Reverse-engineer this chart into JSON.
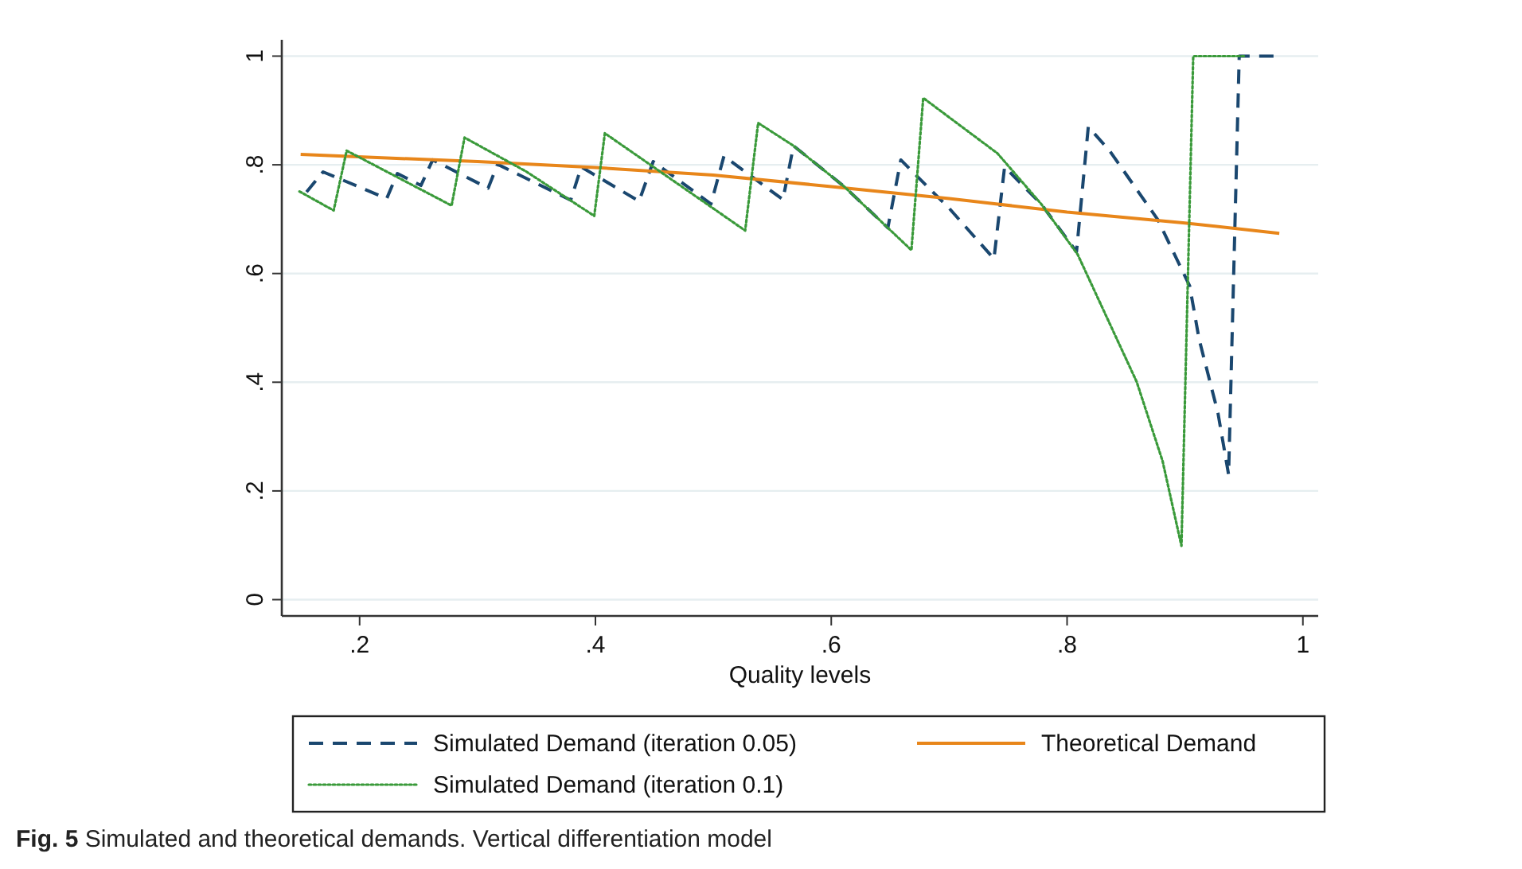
{
  "chart_data": {
    "type": "line",
    "title": "Fig. 5 Simulated and theoretical demands. Vertical differentiation model",
    "xlabel": "Quality levels",
    "xlim": [
      0.134,
      1.013
    ],
    "ylim": [
      -0.03,
      1.03
    ],
    "xticks": [
      {
        "value": 0.2,
        "label": ".2"
      },
      {
        "value": 0.4,
        "label": ".4"
      },
      {
        "value": 0.6,
        "label": ".6"
      },
      {
        "value": 0.8,
        "label": ".8"
      },
      1
    ],
    "yticks": [
      0,
      {
        "value": 0.2,
        "label": ".2"
      },
      {
        "value": 0.4,
        "label": ".4"
      },
      {
        "value": 0.6,
        "label": ".6"
      },
      {
        "value": 0.8,
        "label": ".8"
      },
      1
    ],
    "grid": "y",
    "legend": "bottom",
    "marker": "none",
    "series": [
      {
        "name": "Simulated Demand (iteration 0.05)",
        "color": "#1a476f",
        "line_style": "dashed",
        "x": [
          0.155,
          0.169,
          0.223,
          0.232,
          0.252,
          0.262,
          0.309,
          0.317,
          0.379,
          0.388,
          0.437,
          0.449,
          0.498,
          0.509,
          0.559,
          0.568,
          0.611,
          0.648,
          0.659,
          0.7,
          0.738,
          0.747,
          0.778,
          0.808,
          0.818,
          0.836,
          0.877,
          0.904,
          0.912,
          0.928,
          0.937,
          0.946,
          0.978
        ],
        "values": [
          0.75,
          0.787,
          0.738,
          0.784,
          0.762,
          0.809,
          0.757,
          0.801,
          0.735,
          0.796,
          0.733,
          0.806,
          0.728,
          0.816,
          0.736,
          0.835,
          0.76,
          0.684,
          0.809,
          0.72,
          0.627,
          0.796,
          0.728,
          0.64,
          0.87,
          0.826,
          0.699,
          0.577,
          0.479,
          0.343,
          0.23,
          1.0,
          1.0
        ]
      },
      {
        "name": "Theoretical Demand",
        "color": "#e8861a",
        "line_style": "solid",
        "x": [
          0.15,
          0.3,
          0.4,
          0.5,
          0.6,
          0.7,
          0.8,
          0.9,
          0.98
        ],
        "values": [
          0.819,
          0.806,
          0.795,
          0.781,
          0.76,
          0.738,
          0.713,
          0.693,
          0.674
        ]
      },
      {
        "name": "Simulated Demand (iteration 0.1)",
        "color": "#3a9a3a",
        "line_style": "dotted",
        "x": [
          0.149,
          0.178,
          0.189,
          0.278,
          0.289,
          0.341,
          0.399,
          0.408,
          0.527,
          0.538,
          0.568,
          0.611,
          0.668,
          0.678,
          0.741,
          0.778,
          0.809,
          0.859,
          0.881,
          0.897,
          0.907,
          0.95
        ],
        "values": [
          0.751,
          0.716,
          0.826,
          0.725,
          0.85,
          0.788,
          0.706,
          0.858,
          0.679,
          0.877,
          0.835,
          0.76,
          0.643,
          0.923,
          0.821,
          0.728,
          0.635,
          0.401,
          0.255,
          0.099,
          1.0,
          1.0
        ]
      }
    ]
  }
}
